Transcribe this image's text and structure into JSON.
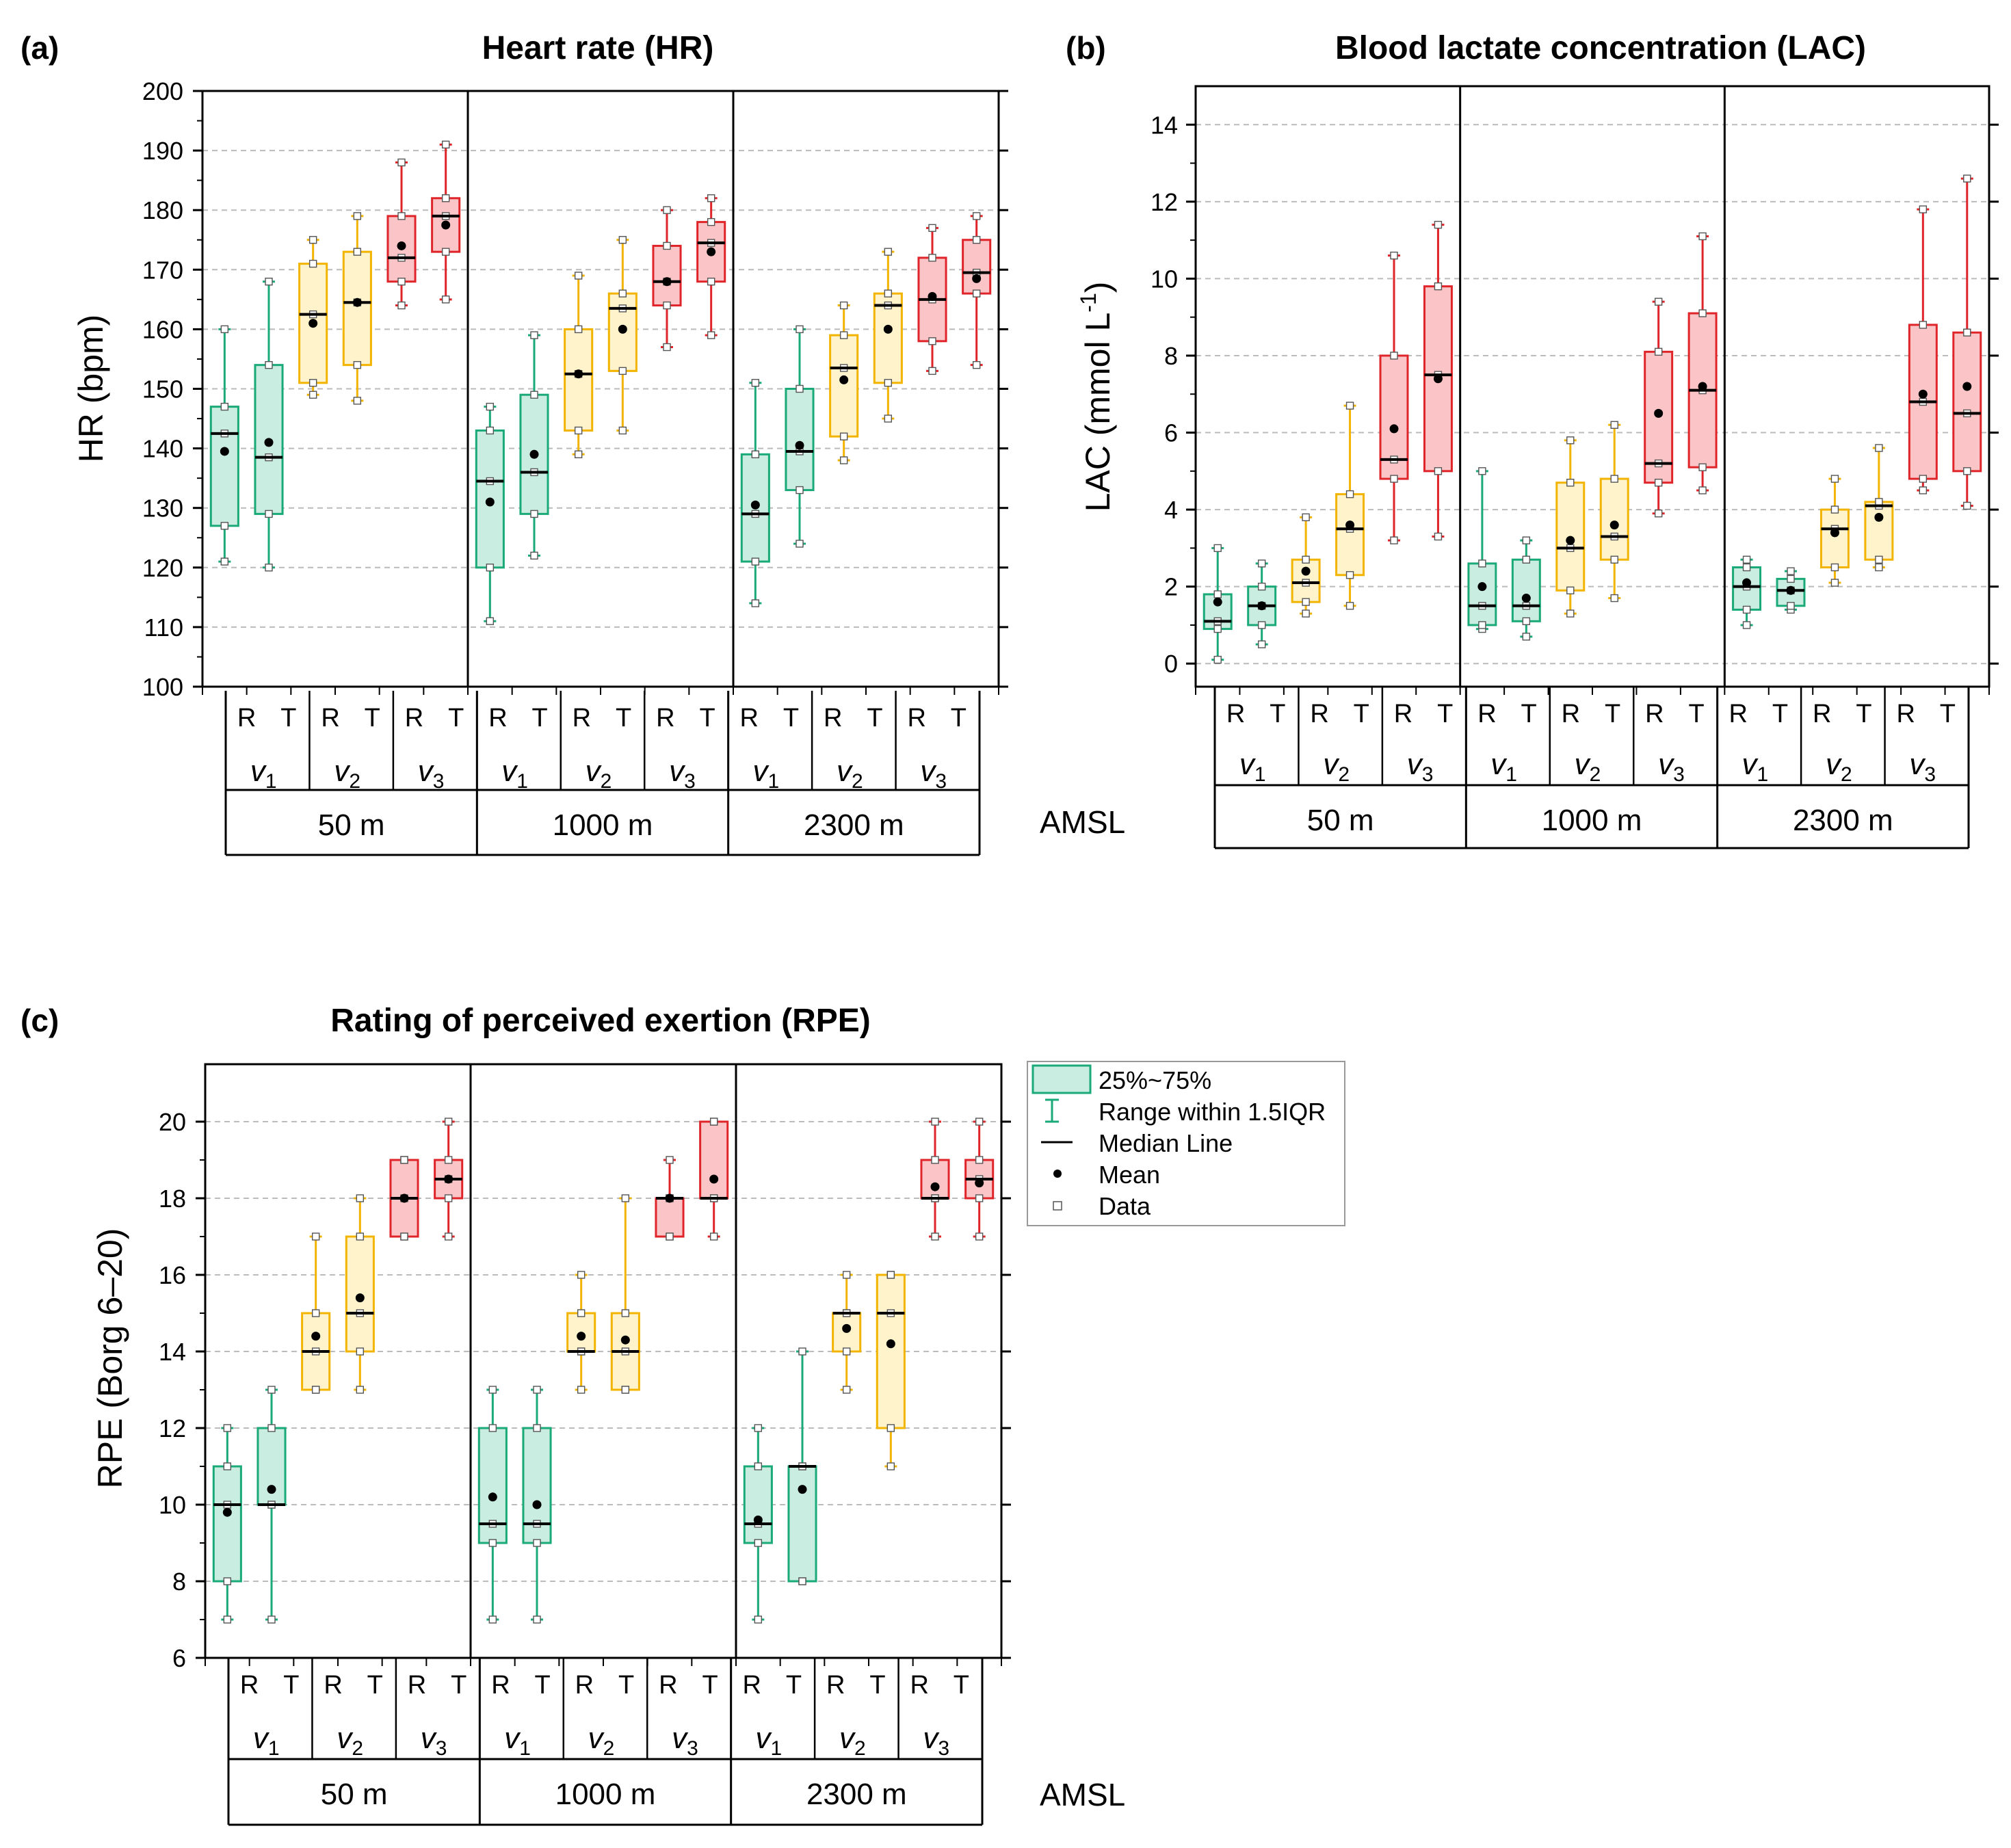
{
  "figure": {
    "amsl_label": "AMSL",
    "legend": {
      "box_label": "25%~75%",
      "whisker_label": "Range within 1.5IQR",
      "median_label": "Median Line",
      "mean_label": "Mean",
      "data_label": "Data"
    },
    "colors": {
      "v1_fill": "#c9ede0",
      "v1_stroke": "#1aaa77",
      "v2_fill": "#fff3cc",
      "v2_stroke": "#f3b400",
      "v3_fill": "#fbc5c7",
      "v3_stroke": "#e0252a",
      "grid": "#bbbbbb",
      "axis": "#000000",
      "mean": "#000000"
    }
  },
  "chart_data": [
    {
      "panel": "(a)",
      "title": "Heart rate (HR)",
      "type": "box",
      "ylabel": "HR (bpm)",
      "ylim": [
        100,
        200
      ],
      "yticks": [
        100,
        110,
        120,
        130,
        140,
        150,
        160,
        170,
        180,
        190,
        200
      ],
      "altitudes": [
        "50 m",
        "1000 m",
        "2300 m"
      ],
      "speeds": [
        "v1",
        "v2",
        "v3"
      ],
      "conditions": [
        "R",
        "T"
      ],
      "boxes": [
        {
          "alt": "50 m",
          "speed": "v1",
          "cond": "R",
          "lo": 121,
          "q1": 127,
          "median": 142.5,
          "q3": 147,
          "hi": 160,
          "mean": 139.5
        },
        {
          "alt": "50 m",
          "speed": "v1",
          "cond": "T",
          "lo": 120,
          "q1": 129,
          "median": 138.5,
          "q3": 154,
          "hi": 168,
          "mean": 141
        },
        {
          "alt": "50 m",
          "speed": "v2",
          "cond": "R",
          "lo": 149,
          "q1": 151,
          "median": 162.5,
          "q3": 171,
          "hi": 175,
          "mean": 161
        },
        {
          "alt": "50 m",
          "speed": "v2",
          "cond": "T",
          "lo": 148,
          "q1": 154,
          "median": 164.5,
          "q3": 173,
          "hi": 179,
          "mean": 164.5
        },
        {
          "alt": "50 m",
          "speed": "v3",
          "cond": "R",
          "lo": 164,
          "q1": 168,
          "median": 172,
          "q3": 179,
          "hi": 188,
          "mean": 174
        },
        {
          "alt": "50 m",
          "speed": "v3",
          "cond": "T",
          "lo": 165,
          "q1": 173,
          "median": 179,
          "q3": 182,
          "hi": 191,
          "mean": 177.5
        },
        {
          "alt": "1000 m",
          "speed": "v1",
          "cond": "R",
          "lo": 111,
          "q1": 120,
          "median": 134.5,
          "q3": 143,
          "hi": 147,
          "mean": 131
        },
        {
          "alt": "1000 m",
          "speed": "v1",
          "cond": "T",
          "lo": 122,
          "q1": 129,
          "median": 136,
          "q3": 149,
          "hi": 159,
          "mean": 139
        },
        {
          "alt": "1000 m",
          "speed": "v2",
          "cond": "R",
          "lo": 139,
          "q1": 143,
          "median": 152.5,
          "q3": 160,
          "hi": 169,
          "mean": 152.5
        },
        {
          "alt": "1000 m",
          "speed": "v2",
          "cond": "T",
          "lo": 143,
          "q1": 153,
          "median": 163.5,
          "q3": 166,
          "hi": 175,
          "mean": 160
        },
        {
          "alt": "1000 m",
          "speed": "v3",
          "cond": "R",
          "lo": 157,
          "q1": 164,
          "median": 168,
          "q3": 174,
          "hi": 180,
          "mean": 168
        },
        {
          "alt": "1000 m",
          "speed": "v3",
          "cond": "T",
          "lo": 159,
          "q1": 168,
          "median": 174.5,
          "q3": 178,
          "hi": 182,
          "mean": 173
        },
        {
          "alt": "2300 m",
          "speed": "v1",
          "cond": "R",
          "lo": 114,
          "q1": 121,
          "median": 129,
          "q3": 139,
          "hi": 151,
          "mean": 130.5
        },
        {
          "alt": "2300 m",
          "speed": "v1",
          "cond": "T",
          "lo": 124,
          "q1": 133,
          "median": 139.5,
          "q3": 150,
          "hi": 160,
          "mean": 140.5
        },
        {
          "alt": "2300 m",
          "speed": "v2",
          "cond": "R",
          "lo": 138,
          "q1": 142,
          "median": 153.5,
          "q3": 159,
          "hi": 164,
          "mean": 151.5
        },
        {
          "alt": "2300 m",
          "speed": "v2",
          "cond": "T",
          "lo": 145,
          "q1": 151,
          "median": 164,
          "q3": 166,
          "hi": 173,
          "mean": 160
        },
        {
          "alt": "2300 m",
          "speed": "v3",
          "cond": "R",
          "lo": 153,
          "q1": 158,
          "median": 165,
          "q3": 172,
          "hi": 177,
          "mean": 165.5
        },
        {
          "alt": "2300 m",
          "speed": "v3",
          "cond": "T",
          "lo": 154,
          "q1": 166,
          "median": 169.5,
          "q3": 175,
          "hi": 179,
          "mean": 168.5
        }
      ]
    },
    {
      "panel": "(b)",
      "title": "Blood lactate concentration (LAC)",
      "type": "box",
      "ylabel": "LAC (mmol L",
      "ylabel_sup": "-1",
      "ylabel_close": ")",
      "ylim": [
        -0.6,
        15
      ],
      "yticks": [
        0,
        2,
        4,
        6,
        8,
        10,
        12,
        14
      ],
      "altitudes": [
        "50 m",
        "1000 m",
        "2300 m"
      ],
      "speeds": [
        "v1",
        "v2",
        "v3"
      ],
      "conditions": [
        "R",
        "T"
      ],
      "boxes": [
        {
          "alt": "50 m",
          "speed": "v1",
          "cond": "R",
          "lo": 0.1,
          "q1": 0.9,
          "median": 1.1,
          "q3": 1.8,
          "hi": 3.0,
          "mean": 1.6
        },
        {
          "alt": "50 m",
          "speed": "v1",
          "cond": "T",
          "lo": 0.5,
          "q1": 1.0,
          "median": 1.5,
          "q3": 2.0,
          "hi": 2.6,
          "mean": 1.5
        },
        {
          "alt": "50 m",
          "speed": "v2",
          "cond": "R",
          "lo": 1.3,
          "q1": 1.6,
          "median": 2.1,
          "q3": 2.7,
          "hi": 3.8,
          "mean": 2.4
        },
        {
          "alt": "50 m",
          "speed": "v2",
          "cond": "T",
          "lo": 1.5,
          "q1": 2.3,
          "median": 3.5,
          "q3": 4.4,
          "hi": 6.7,
          "mean": 3.6
        },
        {
          "alt": "50 m",
          "speed": "v3",
          "cond": "R",
          "lo": 3.2,
          "q1": 4.8,
          "median": 5.3,
          "q3": 8.0,
          "hi": 10.6,
          "mean": 6.1
        },
        {
          "alt": "50 m",
          "speed": "v3",
          "cond": "T",
          "lo": 3.3,
          "q1": 5.0,
          "median": 7.5,
          "q3": 9.8,
          "hi": 11.4,
          "mean": 7.4
        },
        {
          "alt": "1000 m",
          "speed": "v1",
          "cond": "R",
          "lo": 0.9,
          "q1": 1.0,
          "median": 1.5,
          "q3": 2.6,
          "hi": 5.0,
          "mean": 2.0
        },
        {
          "alt": "1000 m",
          "speed": "v1",
          "cond": "T",
          "lo": 0.7,
          "q1": 1.1,
          "median": 1.5,
          "q3": 2.7,
          "hi": 3.2,
          "mean": 1.7
        },
        {
          "alt": "1000 m",
          "speed": "v2",
          "cond": "R",
          "lo": 1.3,
          "q1": 1.9,
          "median": 3.0,
          "q3": 4.7,
          "hi": 5.8,
          "mean": 3.2
        },
        {
          "alt": "1000 m",
          "speed": "v2",
          "cond": "T",
          "lo": 1.7,
          "q1": 2.7,
          "median": 3.3,
          "q3": 4.8,
          "hi": 6.2,
          "mean": 3.6
        },
        {
          "alt": "1000 m",
          "speed": "v3",
          "cond": "R",
          "lo": 3.9,
          "q1": 4.7,
          "median": 5.2,
          "q3": 8.1,
          "hi": 9.4,
          "mean": 6.5
        },
        {
          "alt": "1000 m",
          "speed": "v3",
          "cond": "T",
          "lo": 4.5,
          "q1": 5.1,
          "median": 7.1,
          "q3": 9.1,
          "hi": 11.1,
          "mean": 7.2
        },
        {
          "alt": "2300 m",
          "speed": "v1",
          "cond": "R",
          "lo": 1.0,
          "q1": 1.4,
          "median": 2.0,
          "q3": 2.5,
          "hi": 2.7,
          "mean": 2.1
        },
        {
          "alt": "2300 m",
          "speed": "v1",
          "cond": "T",
          "lo": 1.4,
          "q1": 1.5,
          "median": 1.9,
          "q3": 2.2,
          "hi": 2.4,
          "mean": 1.9
        },
        {
          "alt": "2300 m",
          "speed": "v2",
          "cond": "R",
          "lo": 2.1,
          "q1": 2.5,
          "median": 3.5,
          "q3": 4.0,
          "hi": 4.8,
          "mean": 3.4
        },
        {
          "alt": "2300 m",
          "speed": "v2",
          "cond": "T",
          "lo": 2.5,
          "q1": 2.7,
          "median": 4.1,
          "q3": 4.2,
          "hi": 5.6,
          "mean": 3.8
        },
        {
          "alt": "2300 m",
          "speed": "v3",
          "cond": "R",
          "lo": 4.5,
          "q1": 4.8,
          "median": 6.8,
          "q3": 8.8,
          "hi": 11.8,
          "mean": 7.0
        },
        {
          "alt": "2300 m",
          "speed": "v3",
          "cond": "T",
          "lo": 4.1,
          "q1": 5.0,
          "median": 6.5,
          "q3": 8.6,
          "hi": 12.6,
          "mean": 7.2
        }
      ]
    },
    {
      "panel": "(c)",
      "title": "Rating of perceived exertion (RPE)",
      "type": "box",
      "ylabel": "RPE (Borg 6–20)",
      "ylim": [
        6,
        21.5
      ],
      "yticks": [
        6,
        8,
        10,
        12,
        14,
        16,
        18,
        20
      ],
      "altitudes": [
        "50 m",
        "1000 m",
        "2300 m"
      ],
      "speeds": [
        "v1",
        "v2",
        "v3"
      ],
      "conditions": [
        "R",
        "T"
      ],
      "boxes": [
        {
          "alt": "50 m",
          "speed": "v1",
          "cond": "R",
          "lo": 7,
          "q1": 8,
          "median": 10,
          "q3": 11,
          "hi": 12,
          "mean": 9.8
        },
        {
          "alt": "50 m",
          "speed": "v1",
          "cond": "T",
          "lo": 7,
          "q1": 10,
          "median": 10,
          "q3": 12,
          "hi": 13,
          "mean": 10.4
        },
        {
          "alt": "50 m",
          "speed": "v2",
          "cond": "R",
          "lo": 13,
          "q1": 13,
          "median": 14,
          "q3": 15,
          "hi": 17,
          "mean": 14.4
        },
        {
          "alt": "50 m",
          "speed": "v2",
          "cond": "T",
          "lo": 13,
          "q1": 14,
          "median": 15,
          "q3": 17,
          "hi": 18,
          "mean": 15.4
        },
        {
          "alt": "50 m",
          "speed": "v3",
          "cond": "R",
          "lo": 17,
          "q1": 17,
          "median": 18,
          "q3": 19,
          "hi": 19,
          "mean": 18
        },
        {
          "alt": "50 m",
          "speed": "v3",
          "cond": "T",
          "lo": 17,
          "q1": 18,
          "median": 18.5,
          "q3": 19,
          "hi": 20,
          "mean": 18.5
        },
        {
          "alt": "1000 m",
          "speed": "v1",
          "cond": "R",
          "lo": 7,
          "q1": 9,
          "median": 9.5,
          "q3": 12,
          "hi": 13,
          "mean": 10.2
        },
        {
          "alt": "1000 m",
          "speed": "v1",
          "cond": "T",
          "lo": 7,
          "q1": 9,
          "median": 9.5,
          "q3": 12,
          "hi": 13,
          "mean": 10
        },
        {
          "alt": "1000 m",
          "speed": "v2",
          "cond": "R",
          "lo": 13,
          "q1": 14,
          "median": 14,
          "q3": 15,
          "hi": 16,
          "mean": 14.4
        },
        {
          "alt": "1000 m",
          "speed": "v2",
          "cond": "T",
          "lo": 13,
          "q1": 13,
          "median": 14,
          "q3": 15,
          "hi": 18,
          "mean": 14.3
        },
        {
          "alt": "1000 m",
          "speed": "v3",
          "cond": "R",
          "lo": 17,
          "q1": 17,
          "median": 18,
          "q3": 18,
          "hi": 19,
          "mean": 18
        },
        {
          "alt": "1000 m",
          "speed": "v3",
          "cond": "T",
          "lo": 17,
          "q1": 18,
          "median": 18,
          "q3": 20,
          "hi": 20,
          "mean": 18.5
        },
        {
          "alt": "2300 m",
          "speed": "v1",
          "cond": "R",
          "lo": 7,
          "q1": 9,
          "median": 9.5,
          "q3": 11,
          "hi": 12,
          "mean": 9.6
        },
        {
          "alt": "2300 m",
          "speed": "v1",
          "cond": "T",
          "lo": 8,
          "q1": 8,
          "median": 11,
          "q3": 11,
          "hi": 14,
          "mean": 10.4
        },
        {
          "alt": "2300 m",
          "speed": "v2",
          "cond": "R",
          "lo": 13,
          "q1": 14,
          "median": 15,
          "q3": 15,
          "hi": 16,
          "mean": 14.6
        },
        {
          "alt": "2300 m",
          "speed": "v2",
          "cond": "T",
          "lo": 11,
          "q1": 12,
          "median": 15,
          "q3": 16,
          "hi": 16,
          "mean": 14.2
        },
        {
          "alt": "2300 m",
          "speed": "v3",
          "cond": "R",
          "lo": 17,
          "q1": 18,
          "median": 18,
          "q3": 19,
          "hi": 20,
          "mean": 18.3
        },
        {
          "alt": "2300 m",
          "speed": "v3",
          "cond": "T",
          "lo": 17,
          "q1": 18,
          "median": 18.5,
          "q3": 19,
          "hi": 20,
          "mean": 18.4
        }
      ]
    }
  ]
}
